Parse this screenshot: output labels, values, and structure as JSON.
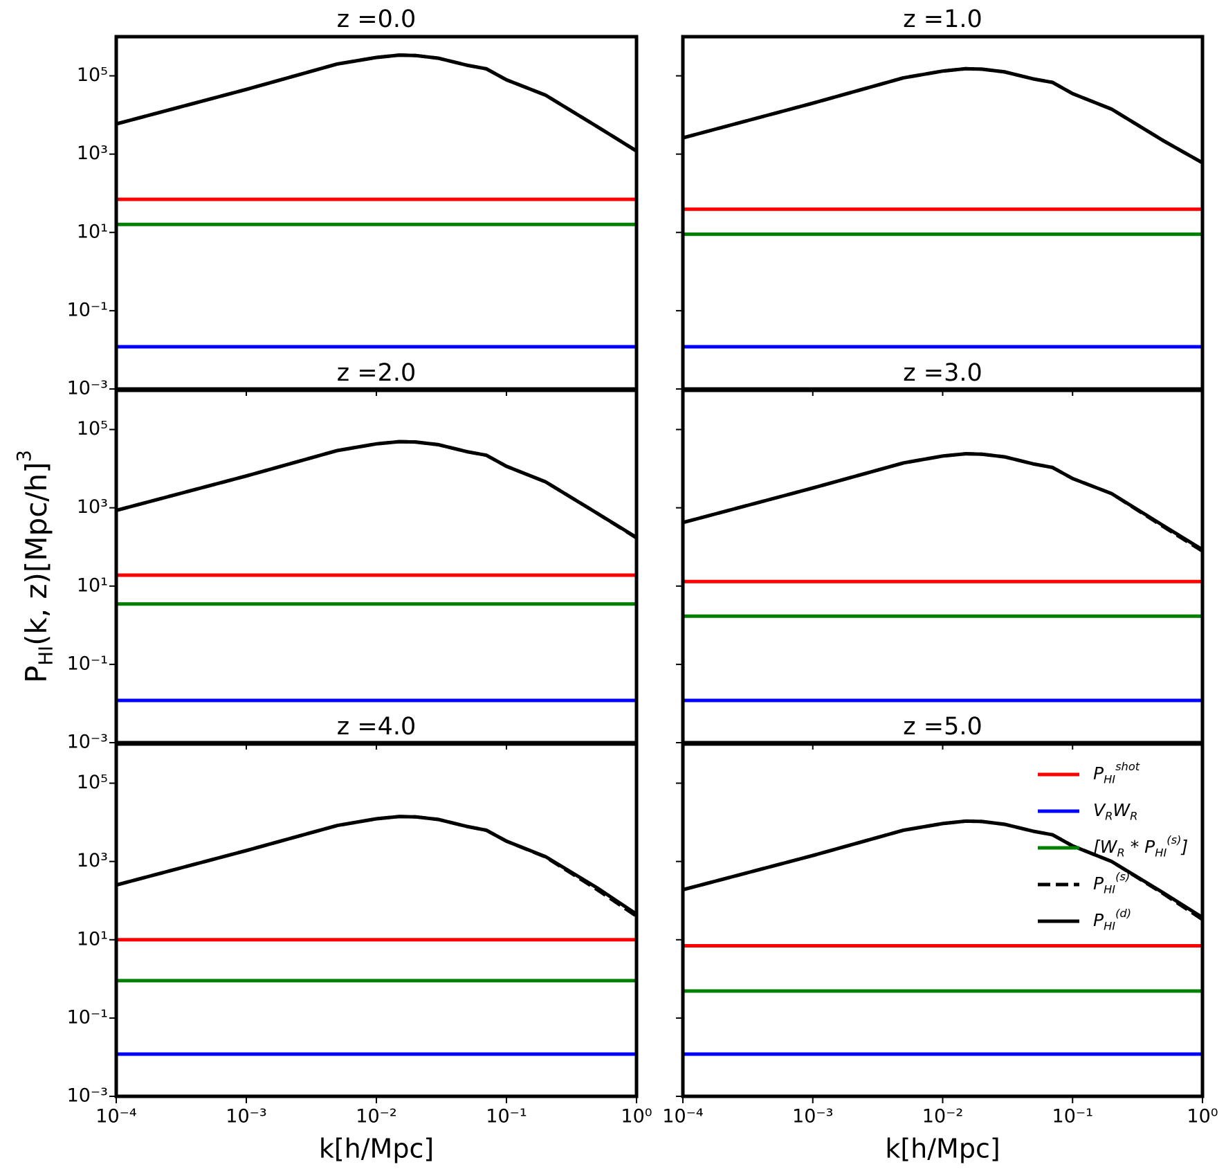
{
  "chart_data": [
    {
      "type": "line",
      "title": "z =0.0",
      "ylabel": "P_{HI}(k, z)[Mpc/h]^{3}",
      "xscale": "log",
      "yscale": "log",
      "show_xticklabels": false,
      "show_yticklabels": true,
      "xlim": [
        0.0001,
        1
      ],
      "ylim": [
        0.001,
        1000000
      ],
      "xticks": [
        {
          "value": 0.0001,
          "label": "10⁻⁴"
        },
        {
          "value": 0.001,
          "label": "10⁻³"
        },
        {
          "value": 0.01,
          "label": "10⁻²"
        },
        {
          "value": 0.1,
          "label": "10⁻¹"
        },
        {
          "value": 1,
          "label": "10⁰"
        }
      ],
      "yticks": [
        {
          "value": 0.001,
          "label": "10⁻³"
        },
        {
          "value": 0.1,
          "label": "10⁻¹"
        },
        {
          "value": 10,
          "label": "10¹"
        },
        {
          "value": 1000,
          "label": "10³"
        },
        {
          "value": 100000,
          "label": "10⁵"
        }
      ],
      "x": [
        0.0001,
        0.001,
        0.005,
        0.01,
        0.015,
        0.02,
        0.03,
        0.05,
        0.07,
        0.1,
        0.2,
        0.5,
        1
      ],
      "series": [
        {
          "color": "#ff0000",
          "x": [
            0.0001,
            1
          ],
          "values": [
            70,
            70
          ]
        },
        {
          "color": "#0000ff",
          "x": [
            0.0001,
            1
          ],
          "values": [
            0.012,
            0.012
          ]
        },
        {
          "color": "#008000",
          "x": [
            0.0001,
            1
          ],
          "values": [
            16,
            16
          ]
        },
        {
          "color": "#000000",
          "dash": true,
          "values": [
            5900,
            45000,
            200000,
            295000,
            339000,
            331000,
            282000,
            186000,
            151000,
            79000,
            32000,
            5000,
            1200
          ]
        },
        {
          "color": "#000000",
          "values": [
            5900,
            45000,
            200000,
            295000,
            339000,
            331000,
            282000,
            186000,
            151000,
            79000,
            32000,
            5000,
            1200
          ]
        }
      ]
    },
    {
      "type": "line",
      "title": "z =1.0",
      "xscale": "log",
      "yscale": "log",
      "show_xticklabels": false,
      "show_yticklabels": false,
      "xlim": [
        0.0001,
        1
      ],
      "ylim": [
        0.001,
        1000000
      ],
      "xticks": [
        {
          "value": 0.0001,
          "label": "10⁻⁴"
        },
        {
          "value": 0.001,
          "label": "10⁻³"
        },
        {
          "value": 0.01,
          "label": "10⁻²"
        },
        {
          "value": 0.1,
          "label": "10⁻¹"
        },
        {
          "value": 1,
          "label": "10⁰"
        }
      ],
      "yticks": [
        {
          "value": 0.001,
          "label": "10⁻³"
        },
        {
          "value": 0.1,
          "label": "10⁻¹"
        },
        {
          "value": 10,
          "label": "10¹"
        },
        {
          "value": 1000,
          "label": "10³"
        },
        {
          "value": 100000,
          "label": "10⁵"
        }
      ],
      "x": [
        0.0001,
        0.001,
        0.005,
        0.01,
        0.015,
        0.02,
        0.03,
        0.05,
        0.07,
        0.1,
        0.2,
        0.5,
        1
      ],
      "series": [
        {
          "color": "#ff0000",
          "x": [
            0.0001,
            1
          ],
          "values": [
            39,
            39
          ]
        },
        {
          "color": "#0000ff",
          "x": [
            0.0001,
            1
          ],
          "values": [
            0.012,
            0.012
          ]
        },
        {
          "color": "#008000",
          "x": [
            0.0001,
            1
          ],
          "values": [
            9,
            9
          ]
        },
        {
          "color": "#000000",
          "dash": true,
          "values": [
            2600,
            20000,
            89000,
            132000,
            152000,
            148000,
            126000,
            83000,
            68000,
            35000,
            14000,
            2200,
            600
          ]
        },
        {
          "color": "#000000",
          "values": [
            2600,
            20000,
            89000,
            132000,
            152000,
            148000,
            126000,
            83000,
            68000,
            35000,
            14000,
            2200,
            600
          ]
        }
      ]
    },
    {
      "type": "line",
      "title": "z =2.0",
      "xscale": "log",
      "yscale": "log",
      "show_xticklabels": false,
      "show_yticklabels": true,
      "xlim": [
        0.0001,
        1
      ],
      "ylim": [
        0.001,
        1000000
      ],
      "xticks": [
        {
          "value": 0.0001,
          "label": "10⁻⁴"
        },
        {
          "value": 0.001,
          "label": "10⁻³"
        },
        {
          "value": 0.01,
          "label": "10⁻²"
        },
        {
          "value": 0.1,
          "label": "10⁻¹"
        },
        {
          "value": 1,
          "label": "10⁰"
        }
      ],
      "yticks": [
        {
          "value": 0.001,
          "label": "10⁻³"
        },
        {
          "value": 0.1,
          "label": "10⁻¹"
        },
        {
          "value": 10,
          "label": "10¹"
        },
        {
          "value": 1000,
          "label": "10³"
        },
        {
          "value": 100000,
          "label": "10⁵"
        }
      ],
      "x": [
        0.0001,
        0.001,
        0.005,
        0.01,
        0.015,
        0.02,
        0.03,
        0.05,
        0.07,
        0.1,
        0.2,
        0.5,
        1
      ],
      "series": [
        {
          "color": "#ff0000",
          "x": [
            0.0001,
            1
          ],
          "values": [
            19,
            19
          ]
        },
        {
          "color": "#0000ff",
          "x": [
            0.0001,
            1
          ],
          "values": [
            0.012,
            0.012
          ]
        },
        {
          "color": "#008000",
          "x": [
            0.0001,
            1
          ],
          "values": [
            3.5,
            3.5
          ]
        },
        {
          "color": "#000000",
          "dash": true,
          "values": [
            860,
            6500,
            29000,
            43000,
            49000,
            48000,
            41000,
            27000,
            22000,
            11500,
            4600,
            720,
            170
          ]
        },
        {
          "color": "#000000",
          "values": [
            860,
            6500,
            29000,
            43000,
            49000,
            48000,
            41000,
            27000,
            22000,
            11500,
            4600,
            720,
            175
          ]
        }
      ]
    },
    {
      "type": "line",
      "title": "z =3.0",
      "xscale": "log",
      "yscale": "log",
      "show_xticklabels": false,
      "show_yticklabels": false,
      "xlim": [
        0.0001,
        1
      ],
      "ylim": [
        0.001,
        1000000
      ],
      "xticks": [
        {
          "value": 0.0001,
          "label": "10⁻⁴"
        },
        {
          "value": 0.001,
          "label": "10⁻³"
        },
        {
          "value": 0.01,
          "label": "10⁻²"
        },
        {
          "value": 0.1,
          "label": "10⁻¹"
        },
        {
          "value": 1,
          "label": "10⁰"
        }
      ],
      "yticks": [
        {
          "value": 0.001,
          "label": "10⁻³"
        },
        {
          "value": 0.1,
          "label": "10⁻¹"
        },
        {
          "value": 10,
          "label": "10¹"
        },
        {
          "value": 1000,
          "label": "10³"
        },
        {
          "value": 100000,
          "label": "10⁵"
        }
      ],
      "x": [
        0.0001,
        0.001,
        0.005,
        0.01,
        0.015,
        0.02,
        0.03,
        0.05,
        0.07,
        0.1,
        0.2,
        0.5,
        1
      ],
      "series": [
        {
          "color": "#ff0000",
          "x": [
            0.0001,
            1
          ],
          "values": [
            13,
            13
          ]
        },
        {
          "color": "#0000ff",
          "x": [
            0.0001,
            1
          ],
          "values": [
            0.012,
            0.012
          ]
        },
        {
          "color": "#008000",
          "x": [
            0.0001,
            1
          ],
          "values": [
            1.7,
            1.7
          ]
        },
        {
          "color": "#000000",
          "dash": true,
          "values": [
            420,
            3200,
            14000,
            21000,
            24000,
            23400,
            20000,
            13200,
            10700,
            5600,
            2300,
            330,
            78
          ]
        },
        {
          "color": "#000000",
          "values": [
            420,
            3200,
            14000,
            21000,
            24000,
            23400,
            20000,
            13200,
            10700,
            5600,
            2300,
            350,
            85
          ]
        }
      ]
    },
    {
      "type": "line",
      "title": "z =4.0",
      "xlabel": "k[h/Mpc]",
      "xscale": "log",
      "yscale": "log",
      "show_xticklabels": true,
      "show_yticklabels": true,
      "xlim": [
        0.0001,
        1
      ],
      "ylim": [
        0.001,
        1000000
      ],
      "xticks": [
        {
          "value": 0.0001,
          "label": "10⁻⁴"
        },
        {
          "value": 0.001,
          "label": "10⁻³"
        },
        {
          "value": 0.01,
          "label": "10⁻²"
        },
        {
          "value": 0.1,
          "label": "10⁻¹"
        },
        {
          "value": 1,
          "label": "10⁰"
        }
      ],
      "yticks": [
        {
          "value": 0.001,
          "label": "10⁻³"
        },
        {
          "value": 0.1,
          "label": "10⁻¹"
        },
        {
          "value": 10,
          "label": "10¹"
        },
        {
          "value": 1000,
          "label": "10³"
        },
        {
          "value": 100000,
          "label": "10⁵"
        }
      ],
      "x": [
        0.0001,
        0.001,
        0.005,
        0.01,
        0.015,
        0.02,
        0.03,
        0.05,
        0.07,
        0.1,
        0.2,
        0.5,
        1
      ],
      "series": [
        {
          "color": "#ff0000",
          "x": [
            0.0001,
            1
          ],
          "values": [
            10,
            10
          ]
        },
        {
          "color": "#0000ff",
          "x": [
            0.0001,
            1
          ],
          "values": [
            0.012,
            0.012
          ]
        },
        {
          "color": "#008000",
          "x": [
            0.0001,
            1
          ],
          "values": [
            0.9,
            0.9
          ]
        },
        {
          "color": "#000000",
          "dash": true,
          "values": [
            250,
            1900,
            8300,
            12300,
            14100,
            13800,
            11800,
            7800,
            6300,
            3300,
            1300,
            190,
            40
          ]
        },
        {
          "color": "#000000",
          "values": [
            250,
            1900,
            8300,
            12300,
            14100,
            13800,
            11800,
            7800,
            6300,
            3300,
            1330,
            210,
            45
          ]
        }
      ]
    },
    {
      "type": "line",
      "title": "z =5.0",
      "xlabel": "k[h/Mpc]",
      "xscale": "log",
      "yscale": "log",
      "show_xticklabels": true,
      "show_yticklabels": false,
      "legend": "upper right",
      "xlim": [
        0.0001,
        1
      ],
      "ylim": [
        0.001,
        1000000
      ],
      "xticks": [
        {
          "value": 0.0001,
          "label": "10⁻⁴"
        },
        {
          "value": 0.001,
          "label": "10⁻³"
        },
        {
          "value": 0.01,
          "label": "10⁻²"
        },
        {
          "value": 0.1,
          "label": "10⁻¹"
        },
        {
          "value": 1,
          "label": "10⁰"
        }
      ],
      "yticks": [
        {
          "value": 0.001,
          "label": "10⁻³"
        },
        {
          "value": 0.1,
          "label": "10⁻¹"
        },
        {
          "value": 10,
          "label": "10¹"
        },
        {
          "value": 1000,
          "label": "10³"
        },
        {
          "value": 100000,
          "label": "10⁵"
        }
      ],
      "x": [
        0.0001,
        0.001,
        0.005,
        0.01,
        0.015,
        0.02,
        0.03,
        0.05,
        0.07,
        0.1,
        0.2,
        0.5,
        1
      ],
      "series": [
        {
          "name": "P_{HI}^{shot}",
          "color": "#ff0000",
          "x": [
            0.0001,
            1
          ],
          "values": [
            7,
            7
          ]
        },
        {
          "name": "V_{R}W_{R}",
          "color": "#0000ff",
          "x": [
            0.0001,
            1
          ],
          "values": [
            0.012,
            0.012
          ]
        },
        {
          "name": "[W_{R} * P_{HI}^{(s)}]",
          "color": "#008000",
          "x": [
            0.0001,
            1
          ],
          "values": [
            0.49,
            0.49
          ]
        },
        {
          "name": "P_{HI}^{(s)}",
          "color": "#000000",
          "dash": true,
          "values": [
            190,
            1420,
            6300,
            9300,
            10700,
            10500,
            8900,
            5900,
            4800,
            2500,
            1000,
            150,
            33
          ]
        },
        {
          "name": "P_{HI}^{(d)}",
          "color": "#000000",
          "values": [
            190,
            1420,
            6300,
            9300,
            10700,
            10500,
            8900,
            5900,
            4800,
            2500,
            1000,
            158,
            37
          ]
        }
      ]
    }
  ]
}
